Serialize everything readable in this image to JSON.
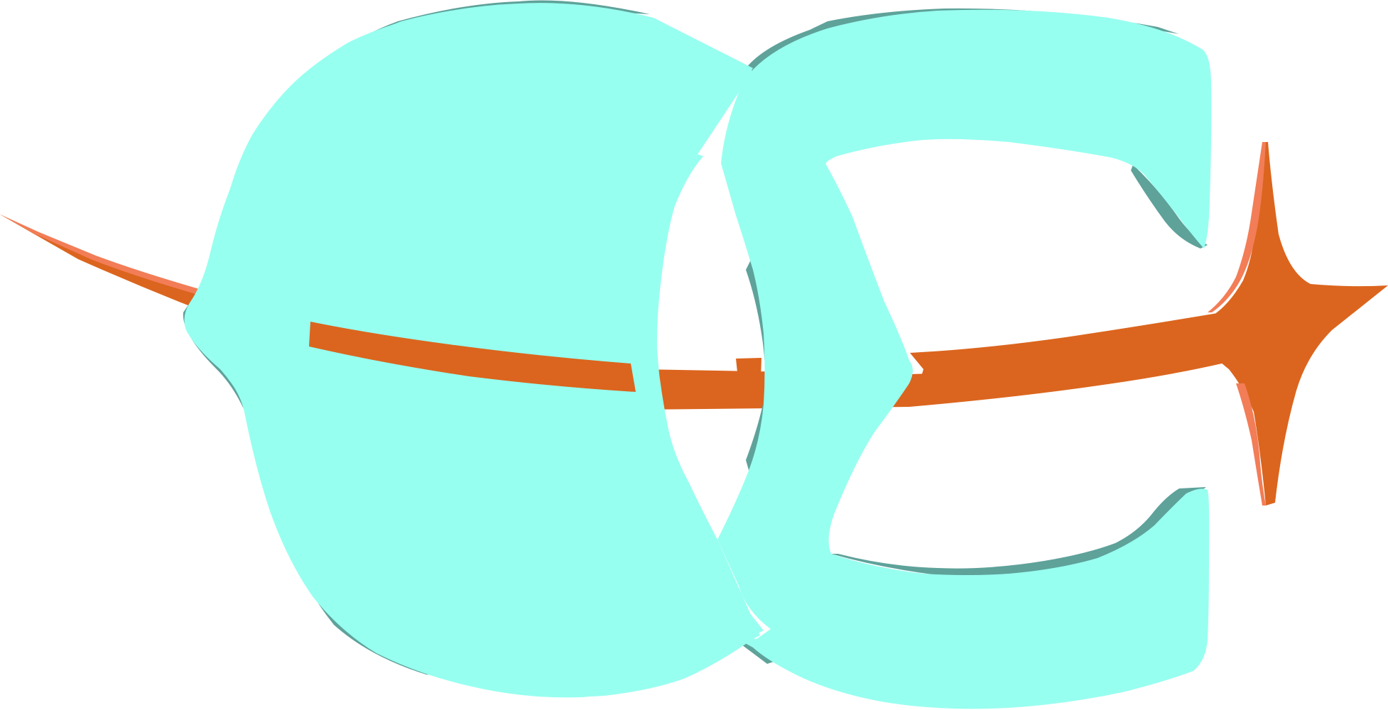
{
  "logo": {
    "colors": {
      "fill": "#97fff0",
      "shadow": "#5ea29a",
      "spear": "#db651e",
      "spear_highlight": "#f27d57",
      "background": "#ffffff"
    },
    "icons": {
      "first_letter": "left-c-letter-icon",
      "second_letter": "right-c-letter-icon",
      "spear": "spear-icon",
      "star": "four-point-star-icon"
    }
  }
}
